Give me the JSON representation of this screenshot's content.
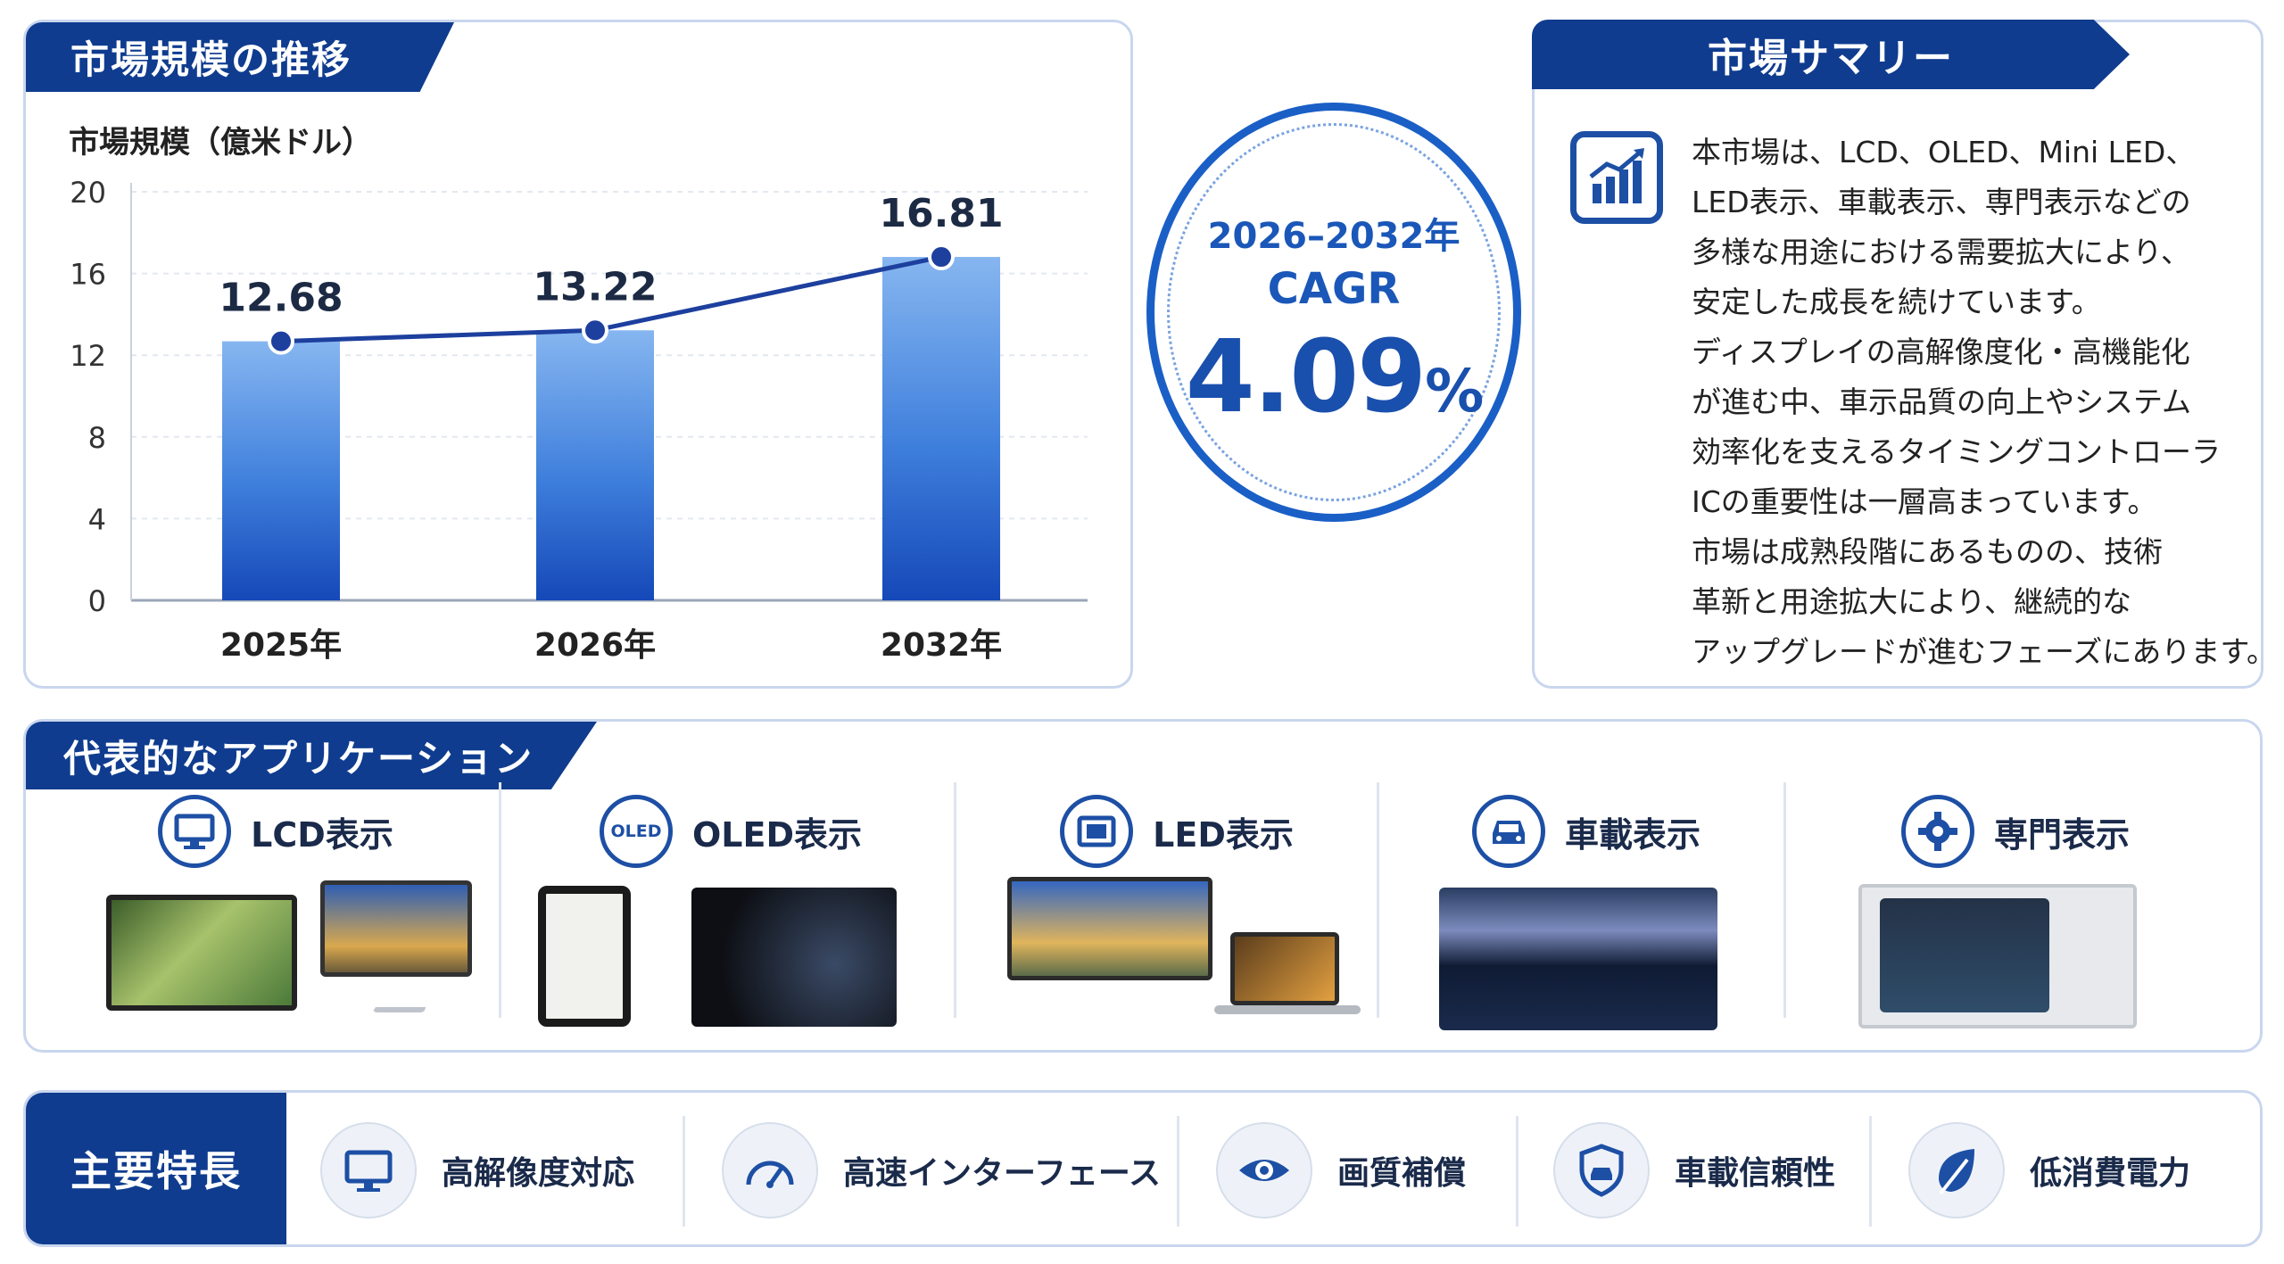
{
  "chart_data": {
    "type": "bar",
    "title": "市場規模の推移",
    "ylabel": "市場規模（億米ドル）",
    "categories": [
      "2025年",
      "2026年",
      "2032年"
    ],
    "values": [
      12.68,
      13.22,
      16.81
    ],
    "value_labels": [
      "12.68",
      "13.22",
      "16.81"
    ],
    "ylim": [
      0,
      20
    ],
    "yticks": [
      "0",
      "4",
      "8",
      "12",
      "16",
      "20"
    ],
    "overlay_line": true,
    "grid": true,
    "colors": {
      "bar_top": "#7fb0ee",
      "bar_bottom": "#1548b8",
      "line": "#1d3f9e",
      "axis_text": "#333333"
    }
  },
  "cagr": {
    "years": "2026–2032年",
    "label": "CAGR",
    "value": "4.09",
    "unit": "%"
  },
  "summary": {
    "title": "市場サマリー",
    "icon": "bar-chart-icon",
    "lines": [
      "本市場は、LCD、OLED、Mini LED、",
      "LED表示、車載表示、専門表示などの",
      "多様な用途における需要拡大により、",
      "安定した成長を続けています。",
      "ディスプレイの高解像度化・高機能化",
      "が進む中、車示品質の向上やシステム",
      "効率化を支えるタイミングコントローラ",
      "ICの重要性は一層高まっています。",
      "市場は成熟段階にあるものの、技術",
      "革新と用途拡大により、継続的な",
      "アップグレードが進むフェーズにあります。"
    ]
  },
  "applications": {
    "title": "代表的なアプリケーション",
    "items": [
      {
        "label": "LCD表示",
        "icon": "monitor-icon"
      },
      {
        "label": "OLED表示",
        "icon": "oled-icon",
        "icon_text": "OLED"
      },
      {
        "label": "LED表示",
        "icon": "led-panel-icon"
      },
      {
        "label": "車載表示",
        "icon": "car-icon"
      },
      {
        "label": "専門表示",
        "icon": "gear-icon"
      }
    ]
  },
  "features": {
    "title": "主要特長",
    "items": [
      {
        "label": "高解像度対応",
        "icon": "monitor-icon"
      },
      {
        "label": "高速インターフェース",
        "icon": "speedometer-icon"
      },
      {
        "label": "画質補償",
        "icon": "eye-icon"
      },
      {
        "label": "車載信頼性",
        "icon": "shield-car-icon"
      },
      {
        "label": "低消費電力",
        "icon": "leaf-icon"
      }
    ]
  },
  "colors": {
    "primary": "#0f3c8f",
    "accent": "#1a5fc6",
    "border": "#c9d6ee"
  }
}
